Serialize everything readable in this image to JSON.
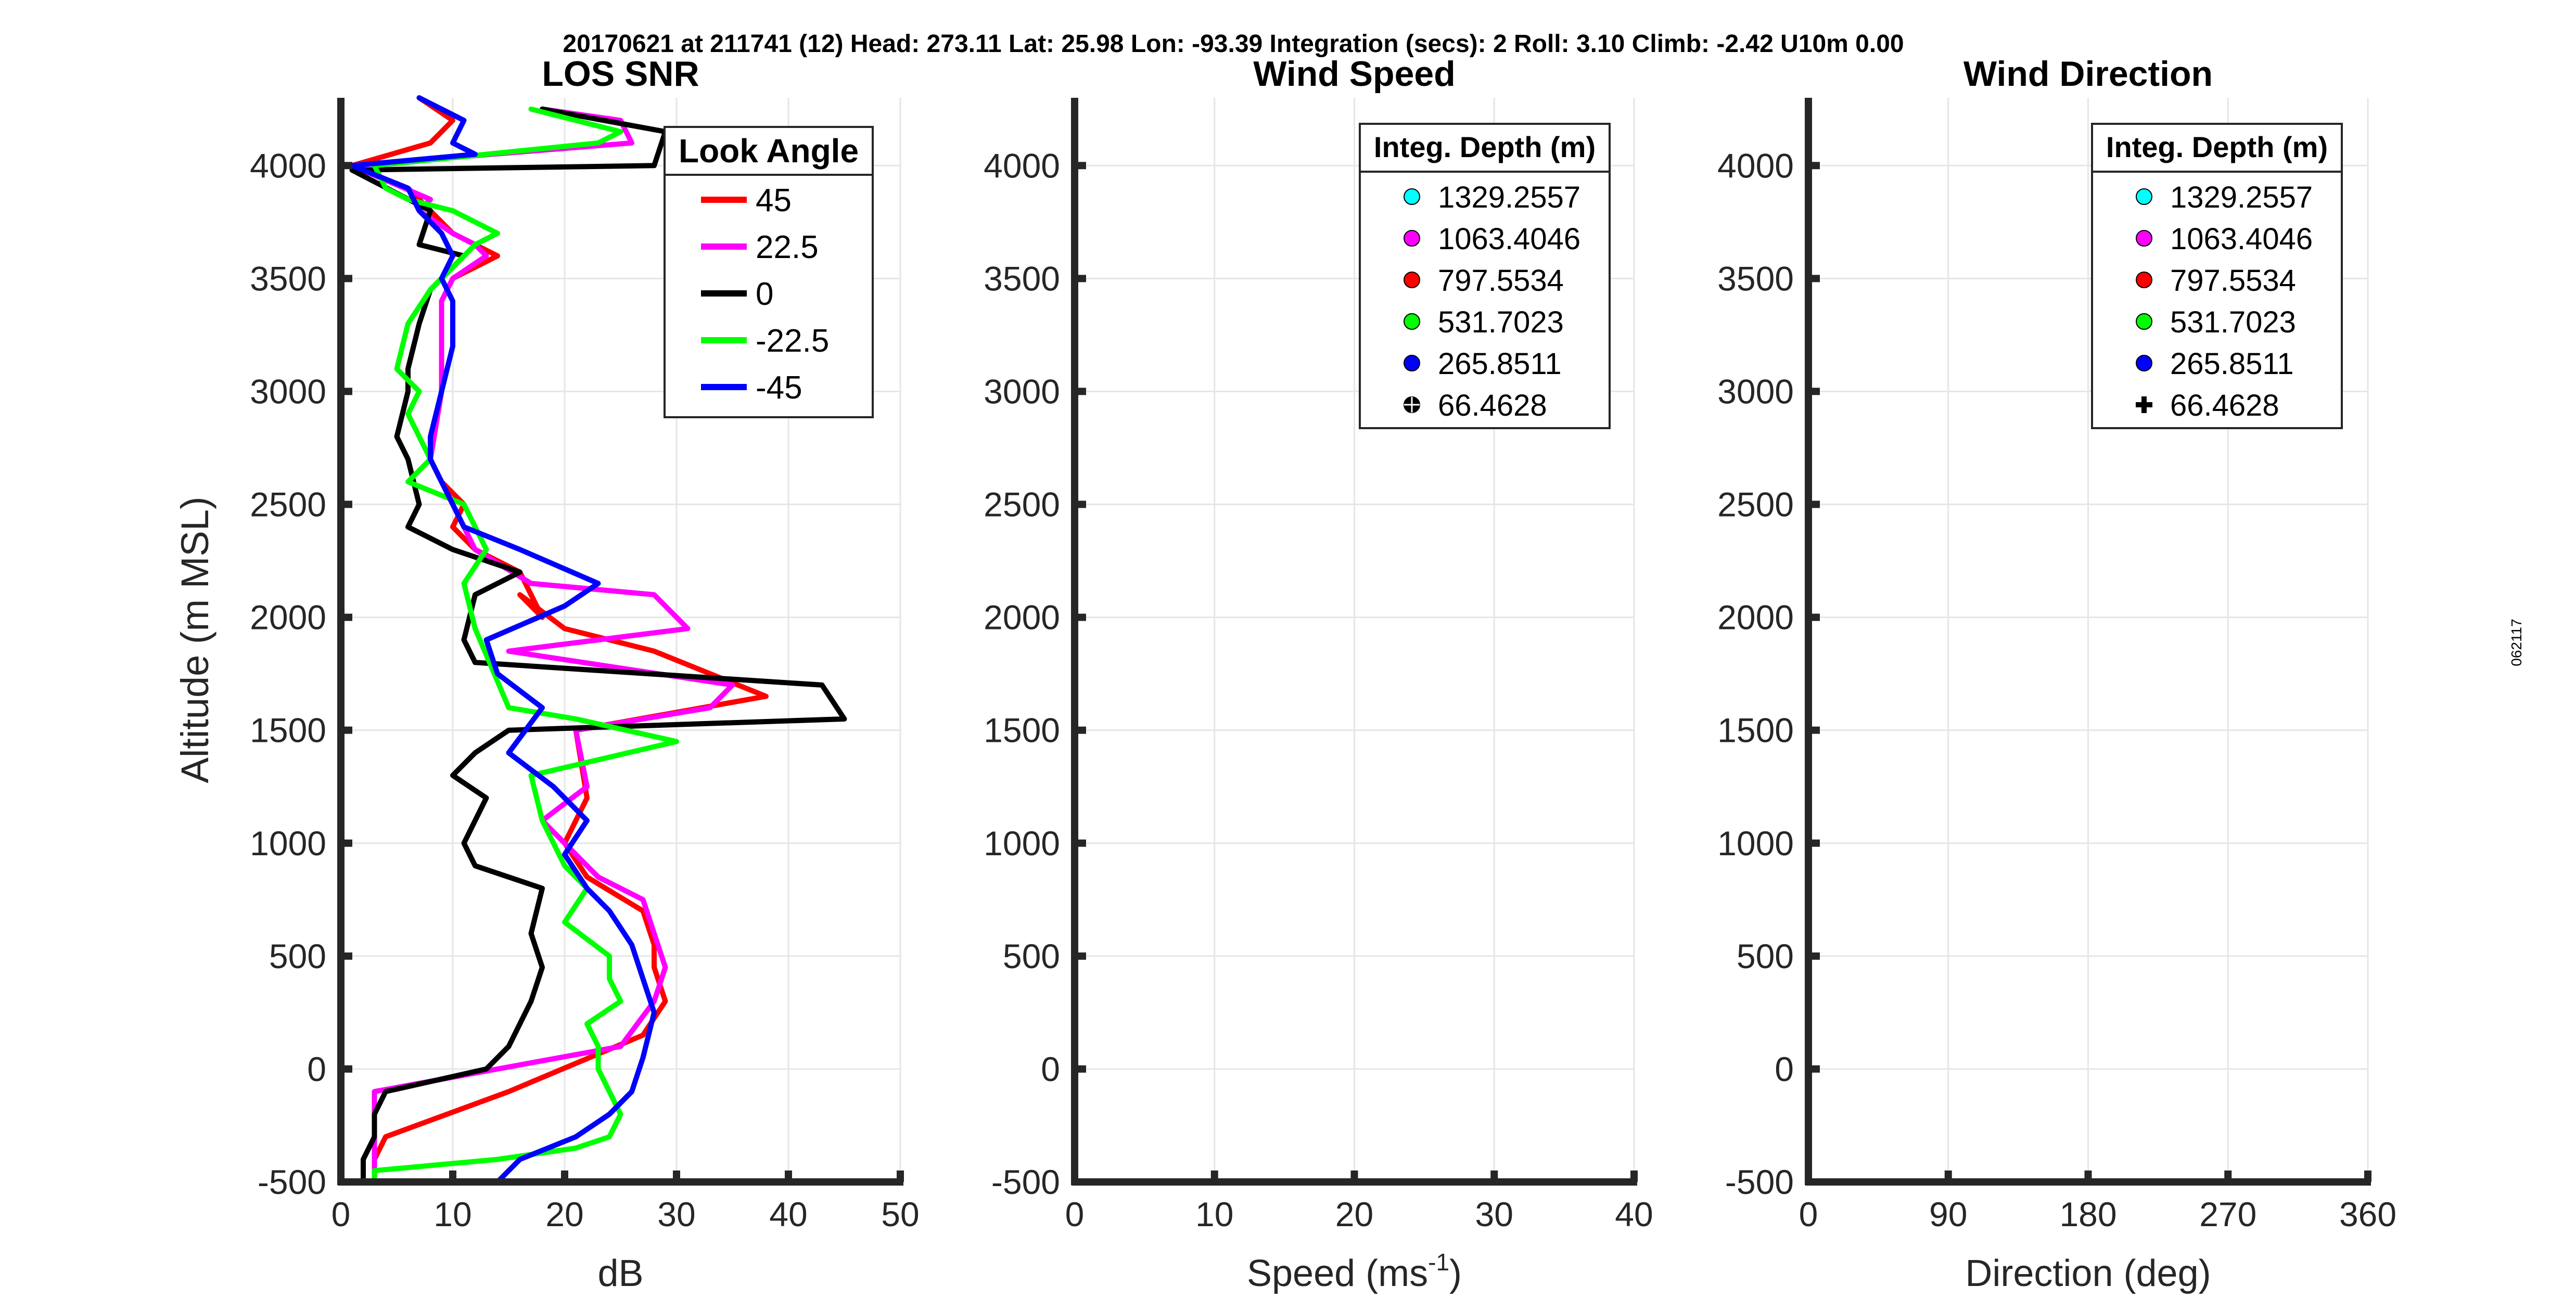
{
  "header": {
    "text": "20170621 at 211741 (12)  Head: 273.11  Lat: 25.98  Lon: -93.39  Integration (secs): 2  Roll: 3.10  Climb: -2.42  U10m 0.00"
  },
  "side_label": "062117",
  "colors": {
    "grid": "#e6e6e6",
    "axis": "#262626",
    "los_45": "#ff0000",
    "los_22_5": "#ff00ff",
    "los_0": "#000000",
    "los_m22_5": "#00ff00",
    "los_m45": "#0000ff",
    "cyan": "#00ffff",
    "magenta": "#ff00ff",
    "red": "#ff0000",
    "green": "#00ff00",
    "blue": "#0000ff",
    "black": "#000000"
  },
  "chart_data": [
    {
      "type": "line",
      "title": "LOS SNR",
      "xlabel": "dB",
      "ylabel": "Altitude (m MSL)",
      "xlim": [
        0,
        50
      ],
      "ylim": [
        -500,
        4300
      ],
      "xticks": [
        0,
        10,
        20,
        30,
        40,
        50
      ],
      "yticks": [
        -500,
        0,
        500,
        1000,
        1500,
        2000,
        2500,
        3000,
        3500,
        4000
      ],
      "grid": true,
      "legend": {
        "title": "Look Angle",
        "position": "top-right"
      },
      "series": [
        {
          "name": "45",
          "color": "#ff0000",
          "x": [
            7,
            10,
            8,
            1,
            6,
            8,
            10,
            12,
            14,
            10,
            9,
            9,
            8,
            9,
            11,
            10,
            12,
            16,
            18,
            16,
            20,
            28,
            38,
            21,
            22,
            20,
            22,
            27,
            28,
            28,
            29,
            27,
            15,
            4,
            3,
            3
          ],
          "y": [
            4300,
            4200,
            4100,
            4000,
            3900,
            3800,
            3700,
            3650,
            3600,
            3500,
            3400,
            3000,
            2700,
            2600,
            2500,
            2400,
            2300,
            2200,
            2000,
            2100,
            1950,
            1850,
            1650,
            1500,
            1200,
            1000,
            850,
            700,
            550,
            450,
            300,
            150,
            -100,
            -300,
            -400,
            -500
          ]
        },
        {
          "name": "22.5",
          "color": "#ff00ff",
          "x": [
            18,
            25,
            26,
            1,
            8,
            7,
            10,
            12,
            13,
            10,
            9,
            9,
            8,
            9,
            11,
            12,
            17,
            28,
            31,
            15,
            35,
            33,
            21,
            22,
            18,
            20,
            23,
            27,
            28,
            29,
            28,
            25,
            3,
            3,
            3,
            3
          ],
          "y": [
            4250,
            4200,
            4100,
            4000,
            3850,
            3800,
            3700,
            3650,
            3600,
            3500,
            3400,
            3000,
            2700,
            2600,
            2400,
            2300,
            2150,
            2100,
            1950,
            1850,
            1700,
            1600,
            1500,
            1250,
            1100,
            1000,
            850,
            750,
            600,
            450,
            300,
            100,
            -100,
            -300,
            -450,
            -500
          ]
        },
        {
          "name": "0",
          "color": "#000000",
          "x": [
            18,
            29,
            28,
            1,
            8,
            7,
            11,
            10,
            9,
            8,
            7,
            6,
            6,
            5,
            6,
            7,
            6,
            10,
            16,
            12,
            11,
            12,
            43,
            45,
            15,
            12,
            10,
            13,
            11,
            12,
            18,
            17,
            18,
            17,
            15,
            13,
            4,
            3,
            3,
            2,
            2
          ],
          "y": [
            4250,
            4150,
            4000,
            3980,
            3800,
            3650,
            3600,
            3550,
            3500,
            3450,
            3300,
            3100,
            3000,
            2800,
            2700,
            2500,
            2400,
            2300,
            2200,
            2100,
            1900,
            1800,
            1700,
            1550,
            1500,
            1400,
            1300,
            1200,
            1000,
            900,
            800,
            600,
            450,
            300,
            100,
            0,
            -100,
            -200,
            -300,
            -400,
            -500
          ]
        },
        {
          "name": "-22.5",
          "color": "#00ff00",
          "x": [
            17,
            25,
            23,
            3,
            4,
            6,
            10,
            14,
            12,
            10,
            8,
            6,
            5,
            7,
            6,
            8,
            6,
            11,
            13,
            11,
            12,
            15,
            21,
            30,
            17,
            18,
            20,
            22,
            20,
            24,
            24,
            25,
            22,
            23,
            23,
            24,
            25,
            24,
            21,
            14,
            3,
            3
          ],
          "y": [
            4250,
            4150,
            4100,
            4000,
            3900,
            3850,
            3800,
            3700,
            3650,
            3550,
            3450,
            3300,
            3100,
            3000,
            2900,
            2700,
            2600,
            2500,
            2300,
            2150,
            1950,
            1600,
            1550,
            1450,
            1300,
            1100,
            900,
            800,
            650,
            500,
            400,
            300,
            200,
            100,
            0,
            -100,
            -200,
            -300,
            -350,
            -400,
            -450,
            -500
          ]
        },
        {
          "name": "-45",
          "color": "#0000ff",
          "x": [
            7,
            11,
            10,
            12,
            1,
            6,
            7,
            9,
            10,
            9,
            10,
            10,
            9,
            8,
            8,
            9,
            11,
            16,
            23,
            20,
            13,
            14,
            18,
            15,
            19,
            22,
            20,
            22,
            24,
            26,
            27,
            28,
            27,
            26,
            24,
            21,
            16,
            14
          ],
          "y": [
            4300,
            4200,
            4100,
            4050,
            4000,
            3900,
            3800,
            3700,
            3600,
            3500,
            3400,
            3200,
            3000,
            2800,
            2700,
            2600,
            2400,
            2300,
            2150,
            2050,
            1900,
            1750,
            1600,
            1400,
            1250,
            1100,
            950,
            800,
            700,
            550,
            400,
            250,
            50,
            -100,
            -200,
            -300,
            -400,
            -500
          ]
        }
      ]
    },
    {
      "type": "scatter",
      "title": "Wind Speed",
      "xlabel": "Speed (ms",
      "xlabel_sup": "-1",
      "xlabel_close": ")",
      "xlim": [
        0,
        40
      ],
      "ylim": [
        -500,
        4300
      ],
      "xticks": [
        0,
        10,
        20,
        30,
        40
      ],
      "yticks": [
        -500,
        0,
        500,
        1000,
        1500,
        2000,
        2500,
        3000,
        3500,
        4000
      ],
      "grid": true,
      "legend": {
        "title": "Integ. Depth (m)",
        "position": "top-right"
      },
      "series": [
        {
          "name": "1329.2557",
          "color": "#00ffff",
          "marker": "circle",
          "x": [],
          "y": []
        },
        {
          "name": "1063.4046",
          "color": "#ff00ff",
          "marker": "circle",
          "x": [],
          "y": []
        },
        {
          "name": "797.5534",
          "color": "#ff0000",
          "marker": "circle",
          "x": [],
          "y": []
        },
        {
          "name": "531.7023",
          "color": "#00ff00",
          "marker": "circle",
          "x": [],
          "y": []
        },
        {
          "name": "265.8511",
          "color": "#0000ff",
          "marker": "circle",
          "x": [],
          "y": []
        },
        {
          "name": "66.4628",
          "color": "#000000",
          "marker": "circle-cross",
          "x": [],
          "y": []
        }
      ]
    },
    {
      "type": "scatter",
      "title": "Wind Direction",
      "xlabel": "Direction (deg)",
      "xlim": [
        0,
        360
      ],
      "ylim": [
        -500,
        4300
      ],
      "xticks": [
        0,
        90,
        180,
        270,
        360
      ],
      "yticks": [
        -500,
        0,
        500,
        1000,
        1500,
        2000,
        2500,
        3000,
        3500,
        4000
      ],
      "grid": true,
      "legend": {
        "title": "Integ. Depth (m)",
        "position": "top-right"
      },
      "series": [
        {
          "name": "1329.2557",
          "color": "#00ffff",
          "marker": "circle",
          "x": [],
          "y": []
        },
        {
          "name": "1063.4046",
          "color": "#ff00ff",
          "marker": "circle",
          "x": [],
          "y": []
        },
        {
          "name": "797.5534",
          "color": "#ff0000",
          "marker": "circle",
          "x": [],
          "y": []
        },
        {
          "name": "531.7023",
          "color": "#00ff00",
          "marker": "circle",
          "x": [],
          "y": []
        },
        {
          "name": "265.8511",
          "color": "#0000ff",
          "marker": "circle",
          "x": [],
          "y": []
        },
        {
          "name": "66.4628",
          "color": "#000000",
          "marker": "plus",
          "x": [],
          "y": []
        }
      ]
    }
  ]
}
